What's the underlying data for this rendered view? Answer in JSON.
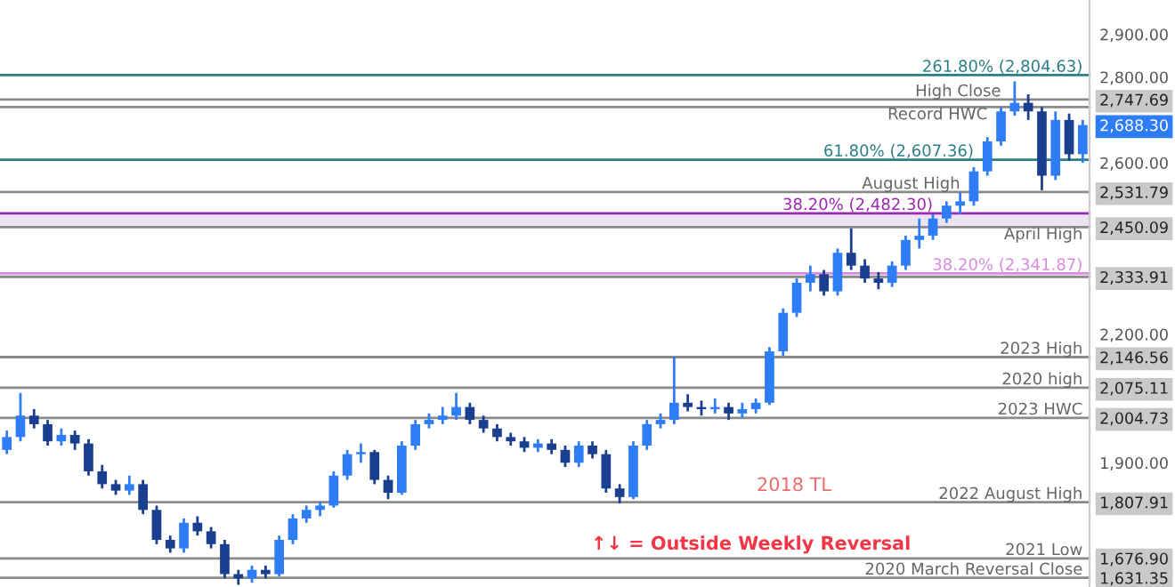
{
  "chart_data": {
    "type": "candlestick",
    "categories": [
      null,
      null,
      null,
      null,
      null,
      null,
      null,
      null,
      null,
      null,
      null,
      null,
      null,
      null,
      null,
      null,
      null,
      null,
      null,
      null,
      null,
      null,
      null,
      null,
      null,
      null,
      null,
      null,
      null,
      null,
      null,
      null,
      null,
      null,
      null,
      null,
      null,
      null,
      null,
      null,
      null,
      null,
      null,
      null,
      null,
      null,
      null,
      null,
      null,
      null,
      null,
      null,
      null,
      null,
      null,
      null,
      null,
      null,
      null,
      null,
      null,
      null,
      null,
      null,
      null,
      null,
      null,
      null,
      null,
      null,
      null,
      null,
      null,
      null,
      null,
      null,
      null,
      null,
      null,
      null
    ],
    "ohlc": [
      [
        1930,
        1975,
        1920,
        1960
      ],
      [
        1960,
        2063,
        1950,
        2010
      ],
      [
        2010,
        2025,
        1980,
        1990
      ],
      [
        1990,
        2000,
        1940,
        1950
      ],
      [
        1950,
        1980,
        1940,
        1965
      ],
      [
        1965,
        1975,
        1930,
        1945
      ],
      [
        1945,
        1955,
        1870,
        1880
      ],
      [
        1880,
        1895,
        1840,
        1850
      ],
      [
        1850,
        1860,
        1825,
        1835
      ],
      [
        1835,
        1870,
        1825,
        1850
      ],
      [
        1850,
        1860,
        1780,
        1790
      ],
      [
        1790,
        1800,
        1710,
        1720
      ],
      [
        1720,
        1730,
        1690,
        1700
      ],
      [
        1700,
        1770,
        1690,
        1760
      ],
      [
        1760,
        1775,
        1730,
        1740
      ],
      [
        1740,
        1750,
        1700,
        1710
      ],
      [
        1710,
        1720,
        1630,
        1640
      ],
      [
        1640,
        1650,
        1615,
        1630
      ],
      [
        1630,
        1660,
        1620,
        1650
      ],
      [
        1650,
        1660,
        1630,
        1640
      ],
      [
        1640,
        1730,
        1635,
        1720
      ],
      [
        1720,
        1780,
        1710,
        1770
      ],
      [
        1770,
        1800,
        1760,
        1790
      ],
      [
        1790,
        1810,
        1775,
        1800
      ],
      [
        1800,
        1880,
        1795,
        1870
      ],
      [
        1870,
        1930,
        1860,
        1920
      ],
      [
        1920,
        1945,
        1900,
        1925
      ],
      [
        1925,
        1930,
        1850,
        1860
      ],
      [
        1860,
        1870,
        1815,
        1830
      ],
      [
        1830,
        1950,
        1825,
        1940
      ],
      [
        1940,
        2000,
        1930,
        1990
      ],
      [
        1990,
        2015,
        1980,
        2000
      ],
      [
        2000,
        2030,
        1990,
        2010
      ],
      [
        2010,
        2063,
        2000,
        2030
      ],
      [
        2030,
        2040,
        1990,
        2000
      ],
      [
        2000,
        2010,
        1970,
        1980
      ],
      [
        1980,
        1990,
        1950,
        1960
      ],
      [
        1960,
        1970,
        1940,
        1950
      ],
      [
        1950,
        1960,
        1925,
        1935
      ],
      [
        1935,
        1955,
        1925,
        1945
      ],
      [
        1945,
        1955,
        1920,
        1930
      ],
      [
        1930,
        1940,
        1890,
        1900
      ],
      [
        1900,
        1950,
        1890,
        1940
      ],
      [
        1940,
        1950,
        1910,
        1920
      ],
      [
        1920,
        1930,
        1830,
        1840
      ],
      [
        1840,
        1850,
        1805,
        1820
      ],
      [
        1820,
        1950,
        1815,
        1940
      ],
      [
        1940,
        2000,
        1930,
        1990
      ],
      [
        1990,
        2015,
        1980,
        2000
      ],
      [
        2000,
        2147,
        1990,
        2040
      ],
      [
        2040,
        2060,
        2020,
        2030
      ],
      [
        2030,
        2045,
        2010,
        2025
      ],
      [
        2025,
        2050,
        2015,
        2030
      ],
      [
        2030,
        2040,
        2000,
        2015
      ],
      [
        2015,
        2040,
        2005,
        2025
      ],
      [
        2025,
        2050,
        2015,
        2040
      ],
      [
        2040,
        2170,
        2035,
        2160
      ],
      [
        2160,
        2260,
        2150,
        2250
      ],
      [
        2250,
        2330,
        2240,
        2320
      ],
      [
        2320,
        2360,
        2300,
        2340
      ],
      [
        2340,
        2350,
        2290,
        2300
      ],
      [
        2300,
        2400,
        2290,
        2390
      ],
      [
        2390,
        2447,
        2350,
        2360
      ],
      [
        2360,
        2375,
        2320,
        2330
      ],
      [
        2330,
        2345,
        2305,
        2320
      ],
      [
        2320,
        2370,
        2310,
        2360
      ],
      [
        2360,
        2430,
        2350,
        2420
      ],
      [
        2420,
        2470,
        2400,
        2430
      ],
      [
        2430,
        2480,
        2420,
        2470
      ],
      [
        2470,
        2510,
        2460,
        2500
      ],
      [
        2500,
        2531,
        2480,
        2510
      ],
      [
        2510,
        2590,
        2500,
        2580
      ],
      [
        2580,
        2660,
        2570,
        2650
      ],
      [
        2650,
        2730,
        2640,
        2720
      ],
      [
        2720,
        2790,
        2710,
        2740
      ],
      [
        2740,
        2760,
        2700,
        2720
      ],
      [
        2720,
        2730,
        2536,
        2570
      ],
      [
        2570,
        2720,
        2560,
        2700
      ],
      [
        2700,
        2715,
        2605,
        2620
      ],
      [
        2620,
        2700,
        2600,
        2688.3
      ]
    ],
    "ylim": [
      1610,
      2980
    ],
    "yticks": [
      {
        "value": 2900,
        "label": "2,900.00"
      },
      {
        "value": 2800,
        "label": "2,800.00"
      },
      {
        "value": 2600,
        "label": "2,600.00"
      },
      {
        "value": 2200,
        "label": "2,200.00"
      },
      {
        "value": 1900,
        "label": "1,900.00"
      },
      {
        "value": 2747.69,
        "label": "2,747.69"
      },
      {
        "value": 2688.3,
        "label": "2,688.30"
      },
      {
        "value": 2531.79,
        "label": "2,531.79"
      },
      {
        "value": 2450.09,
        "label": "2,450.09"
      },
      {
        "value": 2333.91,
        "label": "2,333.91"
      },
      {
        "value": 2146.56,
        "label": "2,146.56"
      },
      {
        "value": 2075.11,
        "label": "2,075.11"
      },
      {
        "value": 2004.73,
        "label": "2,004.73"
      },
      {
        "value": 1807.91,
        "label": "1,807.91"
      },
      {
        "value": 1676.9,
        "label": "1,676.90"
      },
      {
        "value": 1631.35,
        "label": "1,631.35"
      }
    ],
    "tick_labels": "y",
    "grid": false,
    "ref_lines": [
      {
        "axis": "y",
        "value": 2804.63,
        "label": "261.80% (2,804.63)",
        "color": "#2a7f86"
      },
      {
        "axis": "y",
        "value": 2747.69,
        "label": "High Close",
        "color": "#8a8a8a"
      },
      {
        "axis": "y",
        "value": 2730,
        "label": "Record HWC",
        "color": "#8a8a8a"
      },
      {
        "axis": "y",
        "value": 2607.36,
        "label": "61.80% (2,607.36)",
        "color": "#2a7f86"
      },
      {
        "axis": "y",
        "value": 2531.79,
        "label": "August High",
        "color": "#8a8a8a"
      },
      {
        "axis": "y",
        "value": 2482.3,
        "label": "38.20% (2,482.30)",
        "color": "#9c27b0"
      },
      {
        "axis": "y",
        "value": 2450.09,
        "label": "April High",
        "color": "#8a8a8a"
      },
      {
        "axis": "y",
        "value": 2341.87,
        "label": "38.20% (2,341.87)",
        "color": "#d98be0"
      },
      {
        "axis": "y",
        "value": 2333.91,
        "color": "#8a8a8a"
      },
      {
        "axis": "y",
        "value": 2146.56,
        "label": "2023 High",
        "color": "#8a8a8a"
      },
      {
        "axis": "y",
        "value": 2075.11,
        "label": "2020 high",
        "color": "#8a8a8a"
      },
      {
        "axis": "y",
        "value": 2004.73,
        "label": "2023 HWC",
        "color": "#8a8a8a"
      },
      {
        "axis": "y",
        "value": 1807.91,
        "label": "2022 August High",
        "color": "#8a8a8a"
      },
      {
        "axis": "y",
        "value": 1676.9,
        "label": "2021 Low",
        "color": "#8a8a8a"
      },
      {
        "axis": "y",
        "value": 1631.35,
        "label": "2020 March Reversal Close",
        "color": "#8a8a8a"
      }
    ],
    "bands": [
      {
        "axis": "y",
        "from": 2450.09,
        "to": 2482.3,
        "color": "#ece4f3"
      }
    ],
    "annotations": [
      "2018 TL",
      "↑↓ = Outside Weekly Reversal"
    ]
  }
}
